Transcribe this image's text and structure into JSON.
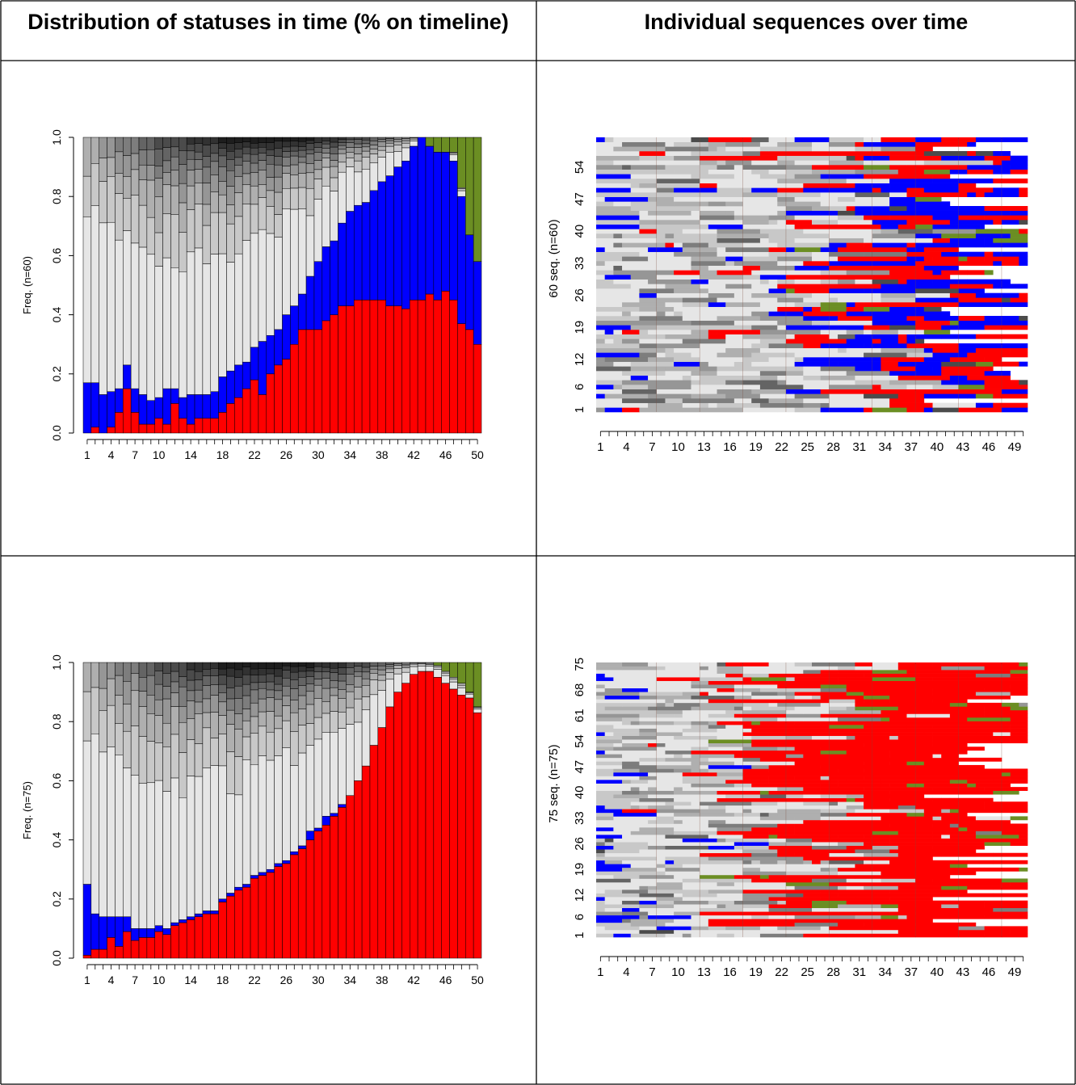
{
  "headers": {
    "left": "Distribution of statuses in time (% on timeline)",
    "right": "Individual sequences over time"
  },
  "colors": {
    "red": "#ff0000",
    "blue": "#0000ff",
    "green": "#6b8e23",
    "grey_levels": [
      "#e6e6e6",
      "#c8c8c8",
      "#afafaf",
      "#969696",
      "#7d7d7d",
      "#646464",
      "#4b4b4b",
      "#323232",
      "#1e1e1e"
    ],
    "white": "#ffffff"
  },
  "chart_data": [
    {
      "type": "bar",
      "stacked": true,
      "ylabel": "Freq. (n=60)",
      "ylim": [
        0,
        1
      ],
      "yticks": [
        "0.0",
        "0.2",
        "0.4",
        "0.6",
        "0.8",
        "1.0"
      ],
      "xtick_labels": [
        "1",
        "4",
        "7",
        "10",
        "14",
        "18",
        "22",
        "26",
        "30",
        "34",
        "38",
        "42",
        "46",
        "50"
      ],
      "n_bars": 50,
      "series": [
        {
          "color": "red",
          "values": [
            0.0,
            0.02,
            0.0,
            0.02,
            0.07,
            0.15,
            0.07,
            0.03,
            0.03,
            0.05,
            0.03,
            0.1,
            0.05,
            0.03,
            0.05,
            0.05,
            0.05,
            0.07,
            0.1,
            0.12,
            0.15,
            0.18,
            0.13,
            0.2,
            0.23,
            0.25,
            0.3,
            0.35,
            0.35,
            0.35,
            0.38,
            0.4,
            0.43,
            0.43,
            0.45,
            0.45,
            0.45,
            0.45,
            0.43,
            0.43,
            0.42,
            0.45,
            0.45,
            0.47,
            0.45,
            0.48,
            0.45,
            0.37,
            0.35,
            0.3
          ]
        },
        {
          "color": "blue",
          "values": [
            0.17,
            0.15,
            0.13,
            0.12,
            0.08,
            0.08,
            0.08,
            0.1,
            0.08,
            0.07,
            0.12,
            0.05,
            0.07,
            0.1,
            0.08,
            0.08,
            0.09,
            0.12,
            0.11,
            0.11,
            0.09,
            0.11,
            0.18,
            0.13,
            0.12,
            0.15,
            0.13,
            0.12,
            0.18,
            0.23,
            0.25,
            0.25,
            0.28,
            0.32,
            0.32,
            0.33,
            0.37,
            0.4,
            0.44,
            0.47,
            0.5,
            0.52,
            0.55,
            0.5,
            0.5,
            0.47,
            0.47,
            0.43,
            0.32,
            0.28
          ]
        },
        {
          "color": "green",
          "values": [
            0,
            0,
            0,
            0,
            0,
            0,
            0,
            0,
            0,
            0,
            0,
            0,
            0,
            0,
            0,
            0,
            0,
            0,
            0,
            0,
            0,
            0,
            0,
            0,
            0,
            0,
            0,
            0,
            0,
            0,
            0,
            0,
            0,
            0,
            0,
            0,
            0,
            0,
            0,
            0,
            0,
            0,
            0,
            0.03,
            0.05,
            0.05,
            0.05,
            0.17,
            0.33,
            0.42
          ]
        }
      ]
    },
    {
      "type": "heatmap",
      "ylabel": "60 seq. (n=60)",
      "n_rows": 60,
      "n_cols": 50,
      "ytick_labels": [
        "1",
        "6",
        "12",
        "19",
        "26",
        "33",
        "40",
        "47",
        "54"
      ],
      "xtick_labels": [
        "1",
        "4",
        "7",
        "10",
        "13",
        "16",
        "19",
        "22",
        "25",
        "28",
        "31",
        "34",
        "37",
        "40",
        "43",
        "46",
        "49"
      ]
    },
    {
      "type": "bar",
      "stacked": true,
      "ylabel": "Freq. (n=75)",
      "ylim": [
        0,
        1
      ],
      "yticks": [
        "0.0",
        "0.2",
        "0.4",
        "0.6",
        "0.8",
        "1.0"
      ],
      "xtick_labels": [
        "1",
        "4",
        "7",
        "10",
        "14",
        "18",
        "22",
        "26",
        "30",
        "34",
        "38",
        "42",
        "46",
        "50"
      ],
      "n_bars": 50,
      "series": [
        {
          "color": "red",
          "values": [
            0.01,
            0.03,
            0.03,
            0.07,
            0.04,
            0.09,
            0.06,
            0.07,
            0.07,
            0.09,
            0.08,
            0.11,
            0.12,
            0.13,
            0.14,
            0.15,
            0.15,
            0.19,
            0.21,
            0.23,
            0.24,
            0.27,
            0.28,
            0.29,
            0.31,
            0.32,
            0.35,
            0.37,
            0.4,
            0.43,
            0.45,
            0.48,
            0.51,
            0.55,
            0.6,
            0.65,
            0.72,
            0.78,
            0.85,
            0.9,
            0.93,
            0.96,
            0.97,
            0.97,
            0.95,
            0.93,
            0.91,
            0.89,
            0.88,
            0.83
          ]
        },
        {
          "color": "blue",
          "values": [
            0.24,
            0.12,
            0.11,
            0.07,
            0.1,
            0.05,
            0.04,
            0.03,
            0.03,
            0.02,
            0.02,
            0.01,
            0.01,
            0.01,
            0.01,
            0.01,
            0.01,
            0.01,
            0.01,
            0.01,
            0.01,
            0.01,
            0.01,
            0.01,
            0.01,
            0.01,
            0.01,
            0.01,
            0.03,
            0.01,
            0.03,
            0.01,
            0.01,
            0,
            0,
            0,
            0,
            0,
            0,
            0,
            0,
            0,
            0,
            0,
            0,
            0,
            0,
            0,
            0,
            0
          ]
        },
        {
          "color": "green",
          "values": [
            0,
            0,
            0,
            0,
            0,
            0,
            0,
            0,
            0,
            0,
            0,
            0,
            0,
            0,
            0,
            0,
            0,
            0,
            0,
            0,
            0,
            0,
            0,
            0,
            0,
            0,
            0,
            0,
            0,
            0,
            0,
            0,
            0,
            0,
            0,
            0,
            0,
            0,
            0,
            0,
            0,
            0,
            0,
            0,
            0.01,
            0.03,
            0.05,
            0.07,
            0.1,
            0.15
          ]
        }
      ]
    },
    {
      "type": "heatmap",
      "ylabel": "75 seq. (n=75)",
      "n_rows": 75,
      "n_cols": 50,
      "ytick_labels": [
        "1",
        "6",
        "12",
        "19",
        "26",
        "33",
        "40",
        "47",
        "54",
        "61",
        "68",
        "75"
      ],
      "xtick_labels": [
        "1",
        "4",
        "7",
        "10",
        "13",
        "16",
        "19",
        "22",
        "25",
        "28",
        "31",
        "34",
        "37",
        "40",
        "43",
        "46",
        "49"
      ]
    }
  ]
}
